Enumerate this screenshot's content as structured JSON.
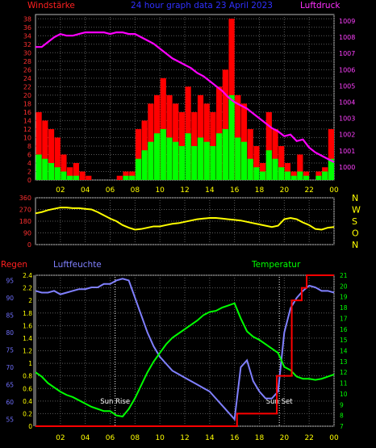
{
  "colors": {
    "background": "#000000",
    "frame": "#b8b8b8",
    "grid": "#5a5a5a",
    "wind_tick": "#ff3030",
    "pressure_tick": "#ff40ff",
    "gust": "#ff0000",
    "wind": "#00ff00",
    "pressure": "#ff00ff",
    "direction": "#ffff00",
    "compass_tick": "#ffff00",
    "rain_tick": "#ffff00",
    "humidity_tick": "#7070ff",
    "temp_tick": "#00ff00",
    "x_tick": "#ffff00",
    "rain": "#ff0000",
    "humidity": "#8080ff",
    "temperature": "#00ff00",
    "marker": "#ffffff"
  },
  "header": {
    "left": "Windstärke",
    "center": "24 hour graph data  23 April 2023",
    "right": "Luftdruck"
  },
  "labels": {
    "regen": "Regen",
    "luftfeuchte": "Luftfeuchte",
    "temperatur": "Temperatur",
    "sun_rise": "Sun Rise",
    "sun_set": "Sun Set"
  },
  "x_ticks": [
    "02",
    "04",
    "06",
    "08",
    "10",
    "12",
    "14",
    "16",
    "18",
    "20",
    "22",
    "00"
  ],
  "chart_data": [
    {
      "type": "bar",
      "x_range": [
        0,
        24
      ],
      "y_left": {
        "name": "Windstärke",
        "ticks": [
          0,
          2,
          4,
          6,
          8,
          10,
          12,
          14,
          16,
          18,
          20,
          22,
          24,
          26,
          28,
          30,
          32,
          34,
          36,
          38
        ],
        "range": [
          0,
          39
        ]
      },
      "y_right": {
        "name": "Luftdruck",
        "ticks": [
          1000,
          1001,
          1002,
          1003,
          1004,
          1005,
          1006,
          1007,
          1008,
          1009
        ],
        "range": [
          999.2,
          1009.4
        ]
      },
      "series": [
        {
          "name": "Windstärke",
          "kind": "gust_bars",
          "x": [
            0.5,
            1.0,
            1.5,
            2.0,
            2.5,
            3.0,
            3.5,
            4.0,
            4.5,
            5.0,
            5.5,
            6.0,
            6.5,
            7.0,
            7.5,
            8.0,
            8.5,
            9.0,
            9.5,
            10.0,
            10.5,
            11.0,
            11.5,
            12.0,
            12.5,
            13.0,
            13.5,
            14.0,
            14.5,
            15.0,
            15.5,
            16.0,
            16.5,
            17.0,
            17.5,
            18.0,
            18.5,
            19.0,
            19.5,
            20.0,
            20.5,
            21.0,
            21.5,
            22.0,
            22.5,
            23.0,
            23.5,
            24.0
          ],
          "gust": [
            16,
            14,
            12,
            10,
            6,
            3,
            4,
            2,
            1,
            0,
            0,
            0,
            0,
            1,
            2,
            2,
            12,
            14,
            18,
            20,
            24,
            20,
            18,
            16,
            22,
            16,
            20,
            18,
            16,
            22,
            26,
            38,
            20,
            18,
            12,
            8,
            4,
            16,
            12,
            8,
            4,
            2,
            6,
            2,
            0,
            2,
            3,
            12
          ],
          "avg": [
            6,
            5,
            4,
            3,
            2,
            1,
            1,
            0,
            0,
            0,
            0,
            0,
            0,
            0,
            1,
            1,
            5,
            7,
            9,
            11,
            12,
            10,
            9,
            8,
            11,
            8,
            10,
            9,
            8,
            11,
            12,
            20,
            10,
            9,
            5,
            3,
            2,
            7,
            5,
            3,
            2,
            1,
            2,
            1,
            0,
            1,
            2,
            5
          ]
        },
        {
          "name": "Luftdruck",
          "kind": "line",
          "x": [
            0,
            0.5,
            1.0,
            1.5,
            2.0,
            2.5,
            3.0,
            3.5,
            4.0,
            4.5,
            5.0,
            5.5,
            6.0,
            6.5,
            7.0,
            7.5,
            8.0,
            8.5,
            9.0,
            9.5,
            10.0,
            10.5,
            11.0,
            11.5,
            12.0,
            12.5,
            13.0,
            13.5,
            14.0,
            14.5,
            15.0,
            15.5,
            16.0,
            16.5,
            17.0,
            17.5,
            18.0,
            18.5,
            19.0,
            19.5,
            20.0,
            20.5,
            21.0,
            21.5,
            22.0,
            22.5,
            23.0,
            23.5,
            24.0
          ],
          "values": [
            1007.4,
            1007.4,
            1007.7,
            1008.0,
            1008.2,
            1008.1,
            1008.1,
            1008.2,
            1008.3,
            1008.3,
            1008.3,
            1008.3,
            1008.2,
            1008.3,
            1008.3,
            1008.2,
            1008.2,
            1008.0,
            1007.8,
            1007.6,
            1007.3,
            1007.0,
            1006.7,
            1006.5,
            1006.3,
            1006.1,
            1005.8,
            1005.6,
            1005.3,
            1005.0,
            1004.7,
            1004.3,
            1004.0,
            1003.8,
            1003.6,
            1003.3,
            1003.0,
            1002.7,
            1002.4,
            1002.2,
            1001.9,
            1002.0,
            1001.6,
            1001.7,
            1001.2,
            1000.9,
            1000.7,
            1000.5,
            1000.3
          ]
        }
      ]
    },
    {
      "type": "line",
      "x_range": [
        0,
        24
      ],
      "y_left": {
        "ticks": [
          0,
          90,
          180,
          270,
          360
        ],
        "range": [
          0,
          360
        ]
      },
      "y_right": {
        "ticks": [
          "N",
          "W",
          "S",
          "O",
          "N"
        ]
      },
      "series": [
        {
          "name": "Windrichtung",
          "x": [
            0,
            0.5,
            1.0,
            1.5,
            2.0,
            2.5,
            3.0,
            3.5,
            4.0,
            4.5,
            5.0,
            5.5,
            6.0,
            6.5,
            7.0,
            7.5,
            8.0,
            8.5,
            9.0,
            9.5,
            10.0,
            10.5,
            11.0,
            11.5,
            12.0,
            12.5,
            13.0,
            13.5,
            14.0,
            14.5,
            15.0,
            15.5,
            16.0,
            16.5,
            17.0,
            17.5,
            18.0,
            18.5,
            19.0,
            19.5,
            20.0,
            20.5,
            21.0,
            21.5,
            22.0,
            22.5,
            23.0,
            23.5,
            24.0
          ],
          "values": [
            240,
            250,
            265,
            275,
            285,
            285,
            280,
            280,
            275,
            270,
            250,
            225,
            200,
            180,
            150,
            130,
            115,
            120,
            130,
            140,
            140,
            150,
            160,
            165,
            175,
            185,
            195,
            200,
            205,
            205,
            200,
            195,
            190,
            185,
            175,
            165,
            155,
            145,
            135,
            145,
            195,
            205,
            195,
            170,
            150,
            120,
            115,
            130,
            135
          ]
        }
      ]
    },
    {
      "type": "line",
      "x_range": [
        0,
        24
      ],
      "y_rain": {
        "name": "Regen",
        "ticks": [
          0,
          0.2,
          0.4,
          0.6,
          0.8,
          1,
          1.2,
          1.4,
          1.6,
          1.8,
          2,
          2.2,
          2.4
        ],
        "range": [
          0,
          2.4
        ]
      },
      "y_humidity": {
        "name": "Luftfeuchte",
        "ticks": [
          55,
          60,
          65,
          70,
          75,
          80,
          85,
          90,
          95
        ],
        "range": [
          53,
          96.5
        ]
      },
      "y_temp": {
        "name": "Temperatur",
        "ticks": [
          7,
          8,
          9,
          10,
          11,
          12,
          13,
          14,
          15,
          16,
          17,
          18,
          19,
          20,
          21
        ],
        "range": [
          7,
          21
        ]
      },
      "series": [
        {
          "name": "Luftfeuchte",
          "x": [
            0,
            0.5,
            1.0,
            1.5,
            2.0,
            2.5,
            3.0,
            3.5,
            4.0,
            4.5,
            5.0,
            5.5,
            6.0,
            6.5,
            7.0,
            7.5,
            8.0,
            8.5,
            9.0,
            9.5,
            10.0,
            10.5,
            11.0,
            11.5,
            12.0,
            12.5,
            13.0,
            13.5,
            14.0,
            14.5,
            15.0,
            15.5,
            16.0,
            16.5,
            17.0,
            17.5,
            18.0,
            18.5,
            19.0,
            19.5,
            20.0,
            20.5,
            21.0,
            21.5,
            22.0,
            22.5,
            23.0,
            23.5,
            24.0
          ],
          "values": [
            92,
            91.5,
            91.5,
            92,
            91,
            91.5,
            92,
            92.5,
            92.5,
            93,
            93,
            94,
            94,
            95,
            95.5,
            95,
            90,
            85,
            80,
            76,
            73,
            71,
            69,
            68,
            67,
            66,
            65,
            64,
            63,
            61,
            59,
            57,
            55,
            70,
            72,
            66,
            63,
            61,
            61,
            63,
            80,
            87,
            90,
            92,
            93.5,
            93,
            92,
            92,
            91.5
          ]
        },
        {
          "name": "Temperatur",
          "x": [
            0,
            0.5,
            1.0,
            1.5,
            2.0,
            2.5,
            3.0,
            3.5,
            4.0,
            4.5,
            5.0,
            5.5,
            6.0,
            6.5,
            7.0,
            7.5,
            8.0,
            8.5,
            9.0,
            9.5,
            10.0,
            10.5,
            11.0,
            11.5,
            12.0,
            12.5,
            13.0,
            13.5,
            14.0,
            14.5,
            15.0,
            15.5,
            16.0,
            16.5,
            17.0,
            17.5,
            18.0,
            18.5,
            19.0,
            19.5,
            20.0,
            20.5,
            21.0,
            21.5,
            22.0,
            22.5,
            23.0,
            23.5,
            24.0
          ],
          "values": [
            12,
            11.6,
            11,
            10.6,
            10.2,
            9.9,
            9.7,
            9.4,
            9.1,
            8.8,
            8.6,
            8.4,
            8.4,
            8.0,
            7.9,
            8.6,
            9.6,
            10.8,
            12.0,
            13.0,
            13.8,
            14.6,
            15.2,
            15.6,
            16.0,
            16.4,
            16.8,
            17.3,
            17.6,
            17.7,
            18.0,
            18.2,
            18.4,
            17.0,
            15.8,
            15.3,
            15.0,
            14.6,
            14.2,
            13.8,
            12.5,
            12.2,
            11.6,
            11.4,
            11.4,
            11.3,
            11.4,
            11.6,
            11.8
          ]
        },
        {
          "name": "Regen",
          "x": [
            0,
            16.2,
            16.2,
            19.4,
            19.4,
            20.6,
            20.6,
            21.4,
            21.4,
            21.8,
            21.8,
            24
          ],
          "values": [
            0,
            0,
            0.2,
            0.2,
            0.8,
            0.8,
            2.0,
            2.0,
            2.2,
            2.2,
            2.4,
            2.4
          ]
        }
      ],
      "markers": [
        {
          "x": 6.4,
          "label": "Sun Rise"
        },
        {
          "x": 19.6,
          "label": "Sun Set"
        }
      ]
    }
  ]
}
